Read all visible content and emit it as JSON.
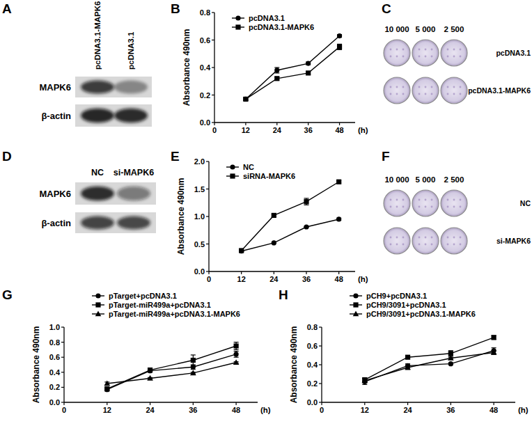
{
  "chart_data": [
    {
      "type": "line",
      "title": "B",
      "y_label": "Absorbance 490nm",
      "x_label": "(h)",
      "x": [
        12,
        24,
        36,
        48
      ],
      "xlim": [
        0,
        54
      ],
      "xticks": [
        0,
        12,
        24,
        36,
        48
      ],
      "ylim": [
        0,
        0.8
      ],
      "yticks": [
        {
          "value": 0,
          "label": "0.0"
        },
        0.2,
        0.4,
        0.6,
        0.8
      ],
      "legend": "upper left",
      "series": [
        {
          "name": "pcDNA3.1",
          "color": "#000000",
          "marker": "circle",
          "values": [
            0.17,
            0.38,
            0.43,
            0.63
          ],
          "errors": [
            0.01,
            0.02,
            0.01,
            0.01
          ]
        },
        {
          "name": "pcDNA3.1-MAPK6",
          "color": "#000000",
          "marker": "square",
          "values": [
            0.17,
            0.32,
            0.36,
            0.55
          ],
          "errors": [
            0.01,
            0.01,
            0.01,
            0.02
          ]
        }
      ]
    },
    {
      "type": "line",
      "title": "E",
      "y_label": "Absorbance 490nm",
      "x_label": "(h)",
      "x": [
        12,
        24,
        36,
        48
      ],
      "xlim": [
        0,
        54
      ],
      "xticks": [
        0,
        12,
        24,
        36,
        48
      ],
      "ylim": [
        0,
        2
      ],
      "yticks": [
        {
          "value": 0,
          "label": "0.0"
        },
        0.5,
        {
          "value": 1,
          "label": "1.0"
        },
        1.5,
        {
          "value": 2,
          "label": "2.0"
        }
      ],
      "legend": "upper left",
      "series": [
        {
          "name": "NC",
          "color": "#000000",
          "marker": "circle",
          "values": [
            0.37,
            0.52,
            0.81,
            0.95
          ],
          "errors": [
            0.01,
            0.01,
            0.01,
            0.02
          ]
        },
        {
          "name": "siRNA-MAPK6",
          "color": "#000000",
          "marker": "square",
          "values": [
            0.38,
            1.02,
            1.27,
            1.63
          ],
          "errors": [
            0.01,
            0.02,
            0.06,
            0.02
          ]
        }
      ]
    },
    {
      "type": "line",
      "title": "G",
      "y_label": "Absorbance 490nm",
      "x_label": "(h)",
      "x": [
        12,
        24,
        36,
        48
      ],
      "xlim": [
        0,
        54
      ],
      "xticks": [
        0,
        12,
        24,
        36,
        48
      ],
      "ylim": [
        0,
        1
      ],
      "yticks": [
        {
          "value": 0,
          "label": "0.0"
        },
        0.2,
        0.4,
        0.6,
        0.8,
        {
          "value": 1,
          "label": "1.0"
        }
      ],
      "legend": "upper left",
      "series": [
        {
          "name": "pTarget+pcDNA3.1",
          "color": "#000000",
          "marker": "circle",
          "values": [
            0.17,
            0.42,
            0.47,
            0.64
          ],
          "errors": [
            0.02,
            0.02,
            0.03,
            0.04
          ]
        },
        {
          "name": "pTarget-miR499a+pcDNA3.1",
          "color": "#000000",
          "marker": "square",
          "values": [
            0.18,
            0.43,
            0.56,
            0.75
          ],
          "errors": [
            0.02,
            0.02,
            0.07,
            0.05
          ]
        },
        {
          "name": "pTarget-miR499a+pcDNA3.1-MAPK6",
          "color": "#000000",
          "marker": "triangle",
          "values": [
            0.25,
            0.32,
            0.39,
            0.53
          ],
          "errors": [
            0.02,
            0.01,
            0.01,
            0.01
          ]
        }
      ]
    },
    {
      "type": "line",
      "title": "H",
      "y_label": "Absorbance 490nm",
      "x_label": "(h)",
      "x": [
        12,
        24,
        36,
        48
      ],
      "xlim": [
        0,
        54
      ],
      "xticks": [
        0,
        12,
        24,
        36,
        48
      ],
      "ylim": [
        0,
        0.8
      ],
      "yticks": [
        {
          "value": 0,
          "label": "0.0"
        },
        0.2,
        0.4,
        0.6,
        0.8
      ],
      "legend": "upper left",
      "series": [
        {
          "name": "pCH9+pcDNA3.1",
          "color": "#000000",
          "marker": "circle",
          "values": [
            0.22,
            0.39,
            0.41,
            0.55
          ],
          "errors": [
            0.03,
            0.02,
            0.01,
            0.03
          ]
        },
        {
          "name": "pCH9/3091+pcDNA3.1",
          "color": "#000000",
          "marker": "square",
          "values": [
            0.24,
            0.48,
            0.52,
            0.69
          ],
          "errors": [
            0.02,
            0.01,
            0.03,
            0.02
          ]
        },
        {
          "name": "pCH9/3091+pcDNA3.1-MAPK6",
          "color": "#000000",
          "marker": "triangle",
          "values": [
            0.23,
            0.37,
            0.47,
            0.53
          ],
          "errors": [
            0.02,
            0.02,
            0.01,
            0.02
          ]
        }
      ]
    }
  ],
  "blots": [
    {
      "title": "A",
      "lanes": [
        "pcDNA3.1-MAPK6",
        "pcDNA3.1"
      ],
      "rows": [
        "MAPK6",
        "β-actin"
      ]
    },
    {
      "title": "D",
      "lanes": [
        "NC",
        "si-MAPK6"
      ],
      "rows": [
        "MAPK6",
        "β-actin"
      ]
    }
  ],
  "colony_assays": [
    {
      "title": "C",
      "columns": [
        "10 000",
        "5 000",
        "2 500"
      ],
      "rows": [
        "pcDNA3.1",
        "pcDNA3.1-MAPK6"
      ]
    },
    {
      "title": "F",
      "columns": [
        "10 000",
        "5 000",
        "2 500"
      ],
      "rows": [
        "NC",
        "si-MAPK6"
      ]
    }
  ]
}
